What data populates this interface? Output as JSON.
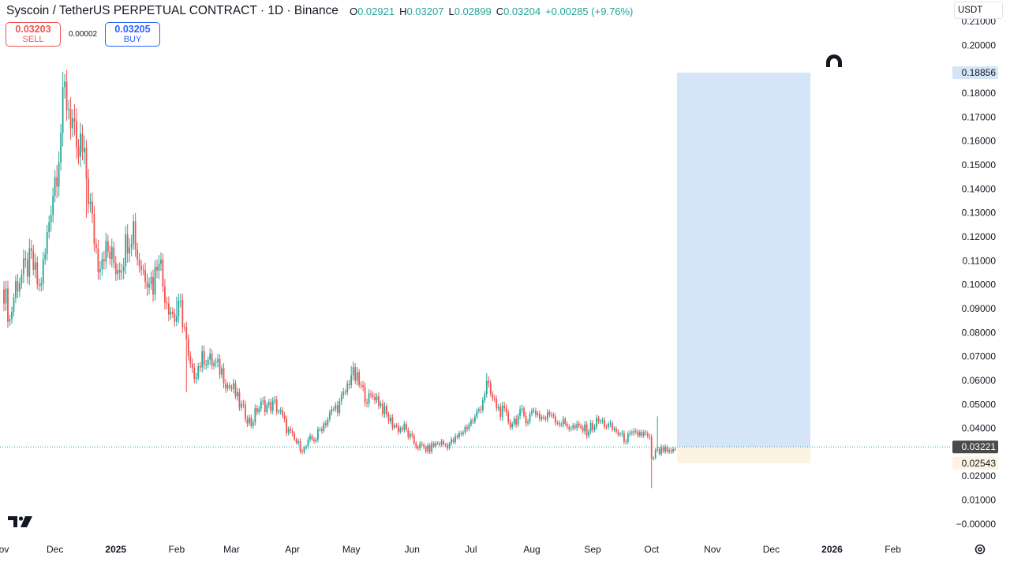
{
  "header": {
    "title": "Syscoin / TetherUS PERPETUAL CONTRACT · 1D · Binance",
    "open_label": "O",
    "open": "0.02921",
    "high_label": "H",
    "high": "0.03207",
    "low_label": "L",
    "low": "0.02899",
    "close_label": "C",
    "close": "0.03204",
    "change": "+0.00285 (+9.76%)"
  },
  "trade": {
    "sell_price": "0.03203",
    "sell_label": "SELL",
    "spread": "0.00002",
    "buy_price": "0.03205",
    "buy_label": "BUY"
  },
  "currency": "USDT",
  "colors": {
    "up": "#26a69a",
    "down": "#ef5350",
    "target_zone": "#d3e5f6",
    "stop_zone": "#fdf3e3",
    "last_price_bg": "#4a4a4a",
    "target_label_bg": "#d3e5f6",
    "stop_label_bg": "#fdf3e3"
  },
  "chart_data": {
    "type": "candlestick",
    "symbol": "SYSUSDT.P",
    "timeframe": "1D",
    "ylim": [
      -0.004,
      0.213
    ],
    "y_ticks": [
      "0.21000",
      "0.20000",
      "0.18000",
      "0.17000",
      "0.16000",
      "0.15000",
      "0.14000",
      "0.13000",
      "0.12000",
      "0.11000",
      "0.10000",
      "0.09000",
      "0.08000",
      "0.07000",
      "0.06000",
      "0.05000",
      "0.04000",
      "0.02000",
      "0.01000",
      "−0.00000"
    ],
    "y_tick_values": [
      0.21,
      0.2,
      0.18,
      0.17,
      0.16,
      0.15,
      0.14,
      0.13,
      0.12,
      0.11,
      0.1,
      0.09,
      0.08,
      0.07,
      0.06,
      0.05,
      0.04,
      0.02,
      0.01,
      0.0
    ],
    "x_ticks": [
      {
        "label": "ov",
        "day": 0,
        "bold": false
      },
      {
        "label": "Dec",
        "day": 26,
        "bold": false
      },
      {
        "label": "2025",
        "day": 57,
        "bold": true
      },
      {
        "label": "Feb",
        "day": 88,
        "bold": false
      },
      {
        "label": "Mar",
        "day": 116,
        "bold": false
      },
      {
        "label": "Apr",
        "day": 147,
        "bold": false
      },
      {
        "label": "May",
        "day": 177,
        "bold": false
      },
      {
        "label": "Jun",
        "day": 208,
        "bold": false
      },
      {
        "label": "Jul",
        "day": 238,
        "bold": false
      },
      {
        "label": "Aug",
        "day": 269,
        "bold": false
      },
      {
        "label": "Sep",
        "day": 300,
        "bold": false
      },
      {
        "label": "Oct",
        "day": 330,
        "bold": false
      },
      {
        "label": "Nov",
        "day": 361,
        "bold": false
      },
      {
        "label": "Dec",
        "day": 391,
        "bold": false
      },
      {
        "label": "2026",
        "day": 422,
        "bold": true
      },
      {
        "label": "Feb",
        "day": 453,
        "bold": false
      }
    ],
    "price_path": [
      [
        0,
        0.098
      ],
      [
        3,
        0.085
      ],
      [
        6,
        0.1
      ],
      [
        10,
        0.105
      ],
      [
        14,
        0.11
      ],
      [
        18,
        0.098
      ],
      [
        21,
        0.112
      ],
      [
        24,
        0.135
      ],
      [
        27,
        0.15
      ],
      [
        29,
        0.165
      ],
      [
        31,
        0.18
      ],
      [
        33,
        0.175
      ],
      [
        35,
        0.168
      ],
      [
        37,
        0.15
      ],
      [
        39,
        0.158
      ],
      [
        42,
        0.145
      ],
      [
        45,
        0.125
      ],
      [
        48,
        0.11
      ],
      [
        51,
        0.115
      ],
      [
        54,
        0.112
      ],
      [
        57,
        0.108
      ],
      [
        60,
        0.11
      ],
      [
        63,
        0.12
      ],
      [
        66,
        0.125
      ],
      [
        68,
        0.112
      ],
      [
        71,
        0.106
      ],
      [
        74,
        0.104
      ],
      [
        76,
        0.1
      ],
      [
        79,
        0.115
      ],
      [
        81,
        0.1
      ],
      [
        84,
        0.092
      ],
      [
        87,
        0.086
      ],
      [
        90,
        0.09
      ],
      [
        92,
        0.082
      ],
      [
        94,
        0.068
      ],
      [
        96,
        0.062
      ],
      [
        99,
        0.066
      ],
      [
        102,
        0.07
      ],
      [
        105,
        0.068
      ],
      [
        108,
        0.066
      ],
      [
        111,
        0.064
      ],
      [
        114,
        0.058
      ],
      [
        117,
        0.056
      ],
      [
        120,
        0.05
      ],
      [
        123,
        0.046
      ],
      [
        126,
        0.042
      ],
      [
        129,
        0.048
      ],
      [
        132,
        0.05
      ],
      [
        135,
        0.049
      ],
      [
        138,
        0.05
      ],
      [
        141,
        0.046
      ],
      [
        144,
        0.04
      ],
      [
        147,
        0.036
      ],
      [
        150,
        0.033
      ],
      [
        153,
        0.031
      ],
      [
        156,
        0.035
      ],
      [
        159,
        0.036
      ],
      [
        162,
        0.041
      ],
      [
        165,
        0.044
      ],
      [
        168,
        0.048
      ],
      [
        171,
        0.05
      ],
      [
        174,
        0.055
      ],
      [
        177,
        0.063
      ],
      [
        180,
        0.06
      ],
      [
        183,
        0.055
      ],
      [
        186,
        0.052
      ],
      [
        189,
        0.054
      ],
      [
        192,
        0.05
      ],
      [
        195,
        0.045
      ],
      [
        198,
        0.042
      ],
      [
        201,
        0.04
      ],
      [
        204,
        0.04
      ],
      [
        207,
        0.036
      ],
      [
        210,
        0.033
      ],
      [
        213,
        0.032
      ],
      [
        216,
        0.031
      ],
      [
        219,
        0.033
      ],
      [
        222,
        0.034
      ],
      [
        225,
        0.033
      ],
      [
        228,
        0.034
      ],
      [
        231,
        0.036
      ],
      [
        234,
        0.039
      ],
      [
        237,
        0.042
      ],
      [
        240,
        0.044
      ],
      [
        243,
        0.05
      ],
      [
        246,
        0.058
      ],
      [
        249,
        0.052
      ],
      [
        252,
        0.048
      ],
      [
        255,
        0.046
      ],
      [
        258,
        0.042
      ],
      [
        261,
        0.044
      ],
      [
        264,
        0.046
      ],
      [
        267,
        0.044
      ],
      [
        270,
        0.048
      ],
      [
        273,
        0.045
      ],
      [
        276,
        0.044
      ],
      [
        279,
        0.047
      ],
      [
        282,
        0.043
      ],
      [
        285,
        0.042
      ],
      [
        288,
        0.041
      ],
      [
        291,
        0.04
      ],
      [
        294,
        0.04
      ],
      [
        297,
        0.039
      ],
      [
        300,
        0.041
      ],
      [
        303,
        0.043
      ],
      [
        306,
        0.042
      ],
      [
        309,
        0.04
      ],
      [
        312,
        0.039
      ],
      [
        315,
        0.036
      ],
      [
        318,
        0.036
      ],
      [
        321,
        0.037
      ],
      [
        324,
        0.038
      ],
      [
        327,
        0.037
      ],
      [
        329,
        0.035
      ],
      [
        330,
        0.026
      ],
      [
        332,
        0.03
      ],
      [
        334,
        0.03
      ],
      [
        336,
        0.031
      ],
      [
        338,
        0.03
      ],
      [
        340,
        0.029
      ],
      [
        342,
        0.032
      ]
    ],
    "special_wicks": [
      {
        "day": 31,
        "high": 0.188
      },
      {
        "day": 42,
        "low": 0.128
      },
      {
        "day": 330,
        "low": 0.015
      },
      {
        "day": 333,
        "high": 0.045
      },
      {
        "day": 177,
        "high": 0.066
      },
      {
        "day": 246,
        "high": 0.063
      },
      {
        "day": 93,
        "low": 0.055
      },
      {
        "day": 88,
        "high": 0.095
      }
    ],
    "last_price": 0.03221,
    "last_price_label": "0.03221",
    "position": {
      "type": "long",
      "entry": 0.03221,
      "target": 0.18856,
      "target_label": "0.18856",
      "stop": 0.02543,
      "stop_label": "0.02543",
      "start_day": 343,
      "end_day": 411
    },
    "magnet_icon": "magnet-icon"
  }
}
